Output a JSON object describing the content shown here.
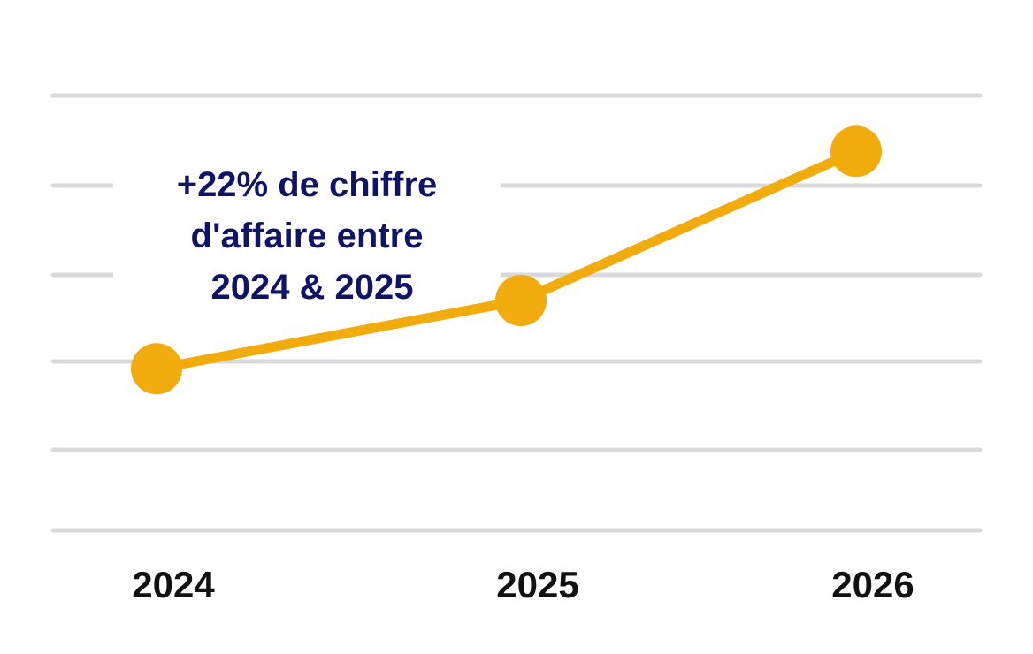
{
  "chart_data": {
    "type": "line",
    "x": [
      "2024",
      "2025",
      "2026"
    ],
    "series": [
      {
        "values": [
          1.0,
          1.22,
          1.7
        ],
        "color": "#f2ab0c"
      }
    ],
    "annotation": [
      "+22% de chiffre",
      "d'affaire entre",
      "2024 & 2025"
    ],
    "ylim": [
      0.48,
      1.88
    ],
    "grid": true,
    "gridlines": 6,
    "colors": {
      "line": "#f2ab0c",
      "point": "#f2ab0c",
      "grid": "#d9d9d9",
      "annotation": "#0f1466",
      "ticks": "#111111"
    }
  }
}
